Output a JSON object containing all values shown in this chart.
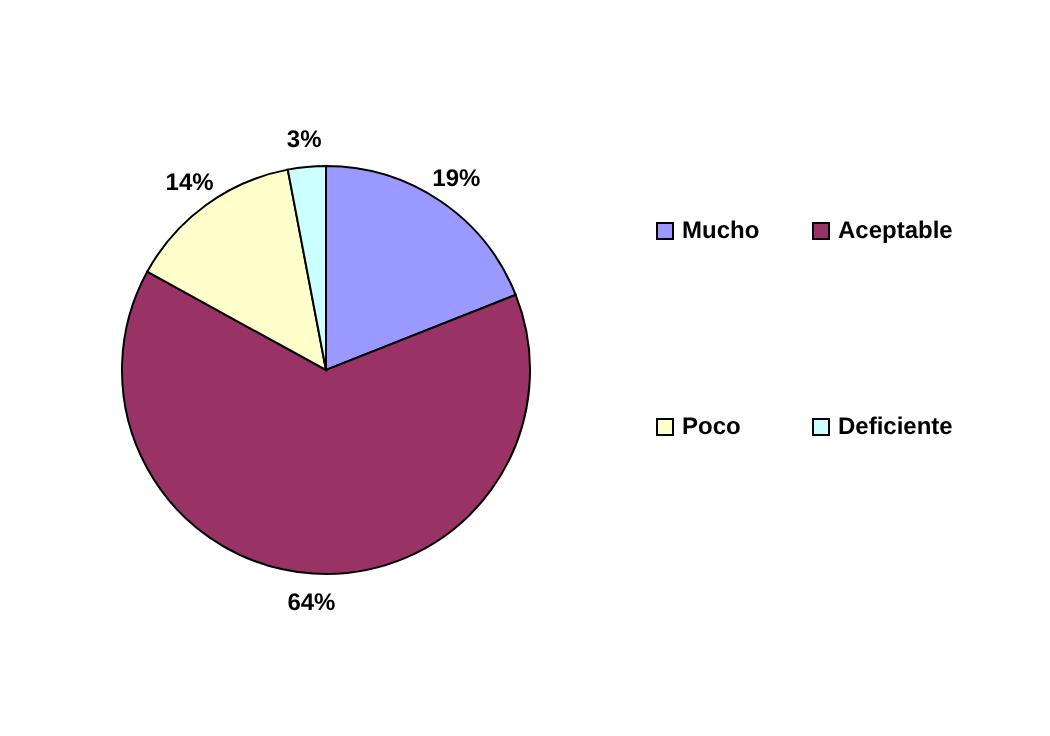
{
  "chart_data": {
    "type": "pie",
    "categories": [
      "Mucho",
      "Aceptable",
      "Poco",
      "Deficiente"
    ],
    "values": [
      19,
      64,
      14,
      3
    ],
    "colors": [
      "#9999ff",
      "#993366",
      "#ffffcc",
      "#ccffff"
    ],
    "value_labels": [
      "19%",
      "64%",
      "14%",
      "3%"
    ],
    "legend": "right"
  }
}
